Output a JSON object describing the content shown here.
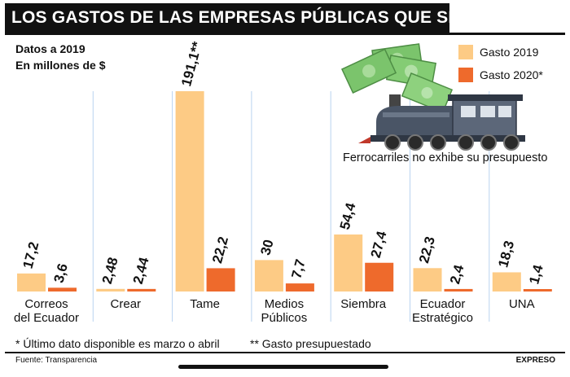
{
  "header": {
    "title": "LOS GASTOS DE LAS EMPRESAS PÚBLICAS QUE SERÁN ELIMINADAS",
    "subtitle_line1": "Datos a 2019",
    "subtitle_line2": "En millones de $"
  },
  "legend": {
    "item_2019": "Gasto 2019",
    "item_2020": "Gasto 2020*"
  },
  "illustration": {
    "icon": "train-with-money-icon",
    "note": "Ferrocarriles no exhibe su presupuesto"
  },
  "footnotes": {
    "note1": "* Último dato disponible es marzo o abril",
    "note2": "** Gasto presupuestado"
  },
  "footer": {
    "source": "Fuente: Transparencia",
    "brand": "EXPRESO"
  },
  "colors": {
    "gasto_2019": "#FDCB85",
    "gasto_2020": "#EE6A2C",
    "title_bg": "#111111",
    "divider": "#B9D3F0"
  },
  "chart_data": {
    "type": "bar",
    "categories": [
      [
        "Correos",
        "del Ecuador"
      ],
      [
        "Crear"
      ],
      [
        "Tame"
      ],
      [
        "Medios",
        "Públicos"
      ],
      [
        "Siembra"
      ],
      [
        "Ecuador",
        "Estratégico"
      ],
      [
        "UNA"
      ]
    ],
    "series": [
      {
        "name": "Gasto 2019",
        "values": [
          17.2,
          2.48,
          191.1,
          30,
          54.4,
          22.3,
          18.3
        ],
        "labels": [
          "17,2",
          "2,48",
          "191,1**",
          "30",
          "54,4",
          "22,3",
          "18,3"
        ]
      },
      {
        "name": "Gasto 2020*",
        "values": [
          3.6,
          2.44,
          22.2,
          7.7,
          27.4,
          2.4,
          1.4
        ],
        "labels": [
          "3,6",
          "2,44",
          "22,2",
          "7,7",
          "27,4",
          "2,4",
          "1,4"
        ]
      }
    ],
    "ylim": [
      0,
      191.1
    ],
    "grid": false
  }
}
